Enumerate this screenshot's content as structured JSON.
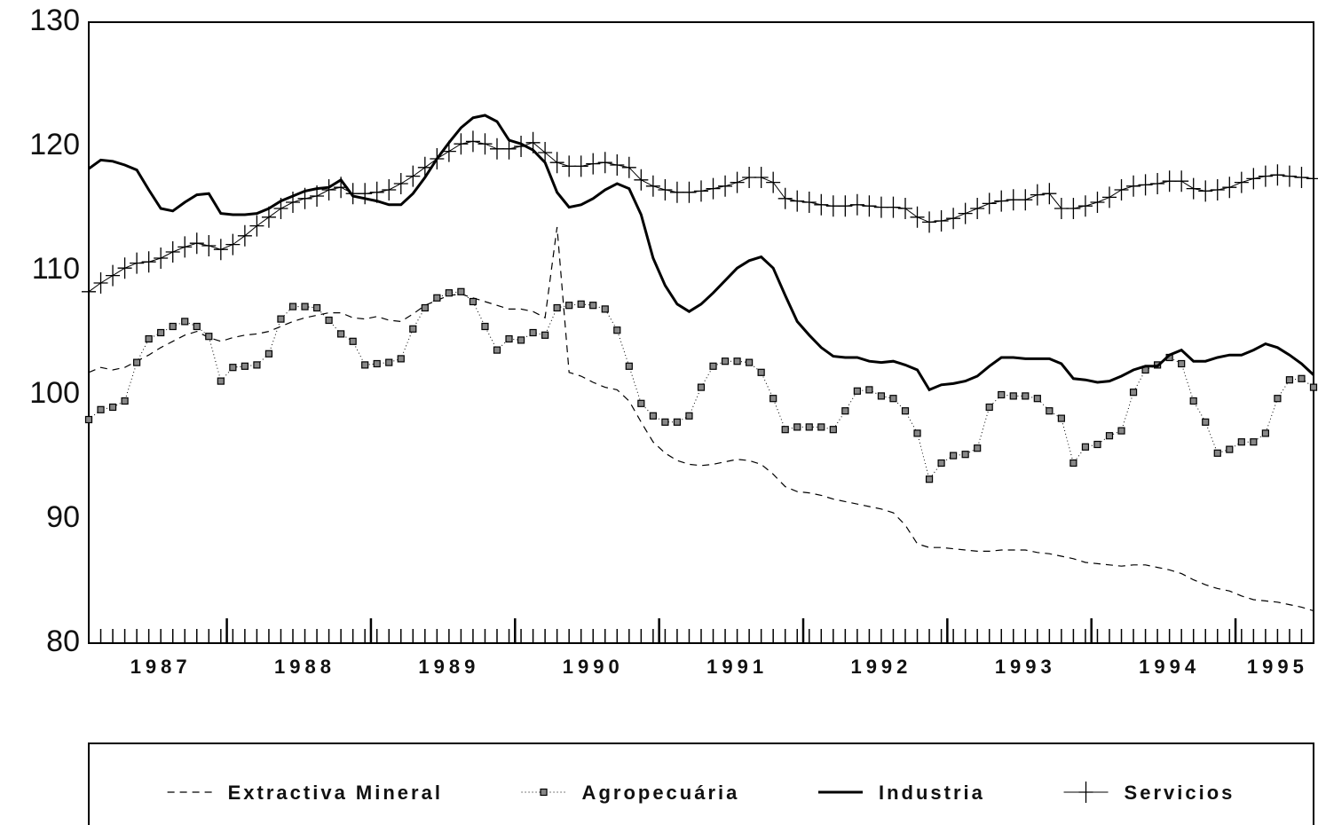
{
  "chart_data": {
    "type": "line",
    "categories": [
      null,
      null,
      null,
      null,
      null,
      null,
      "1987",
      null,
      null,
      null,
      null,
      null,
      null,
      null,
      null,
      null,
      null,
      null,
      "1988",
      null,
      null,
      null,
      null,
      null,
      null,
      null,
      null,
      null,
      null,
      null,
      "1989",
      null,
      null,
      null,
      null,
      null,
      null,
      null,
      null,
      null,
      null,
      null,
      "1990",
      null,
      null,
      null,
      null,
      null,
      null,
      null,
      null,
      null,
      null,
      null,
      "1991",
      null,
      null,
      null,
      null,
      null,
      null,
      null,
      null,
      null,
      null,
      null,
      "1992",
      null,
      null,
      null,
      null,
      null,
      null,
      null,
      null,
      null,
      null,
      null,
      "1993",
      null,
      null,
      null,
      null,
      null,
      null,
      null,
      null,
      null,
      null,
      null,
      "1994",
      null,
      null,
      null,
      null,
      null,
      null,
      null,
      null,
      "1995",
      null,
      null,
      null
    ],
    "ylim": [
      80,
      130
    ],
    "yticks": [
      80,
      90,
      100,
      110,
      120,
      130
    ],
    "grid": false,
    "legend": "bottom",
    "series": [
      {
        "name": "Extractiva Mineral",
        "color": "#000000",
        "line_style": "dashed",
        "marker": "none",
        "values": [
          101.8,
          102.2,
          102.0,
          102.2,
          102.7,
          103.2,
          103.8,
          104.3,
          104.8,
          105.1,
          104.6,
          104.3,
          104.6,
          104.8,
          104.9,
          105.1,
          105.5,
          105.9,
          106.2,
          106.4,
          106.6,
          106.6,
          106.2,
          106.1,
          106.3,
          106.0,
          105.9,
          106.5,
          107.2,
          107.6,
          108.0,
          108.1,
          107.8,
          107.5,
          107.2,
          106.9,
          106.9,
          106.7,
          106.2,
          113.5,
          101.8,
          101.5,
          101.0,
          100.6,
          100.4,
          99.5,
          97.8,
          96.2,
          95.3,
          94.7,
          94.4,
          94.3,
          94.4,
          94.6,
          94.8,
          94.7,
          94.4,
          93.6,
          92.6,
          92.2,
          92.1,
          91.9,
          91.6,
          91.4,
          91.2,
          91.0,
          90.8,
          90.5,
          89.5,
          88.0,
          87.7,
          87.7,
          87.6,
          87.5,
          87.4,
          87.4,
          87.5,
          87.5,
          87.5,
          87.3,
          87.2,
          87.0,
          86.8,
          86.5,
          86.4,
          86.3,
          86.2,
          86.3,
          86.3,
          86.1,
          85.9,
          85.6,
          85.1,
          84.7,
          84.4,
          84.2,
          83.8,
          83.5,
          83.4,
          83.3,
          83.1,
          82.9,
          82.6
        ]
      },
      {
        "name": "Agropecuária",
        "color": "#000000",
        "line_style": "dotted",
        "marker": "square",
        "values": [
          98.0,
          98.8,
          99.0,
          99.5,
          102.6,
          104.5,
          105.0,
          105.5,
          105.9,
          105.5,
          104.7,
          101.1,
          102.2,
          102.3,
          102.4,
          103.3,
          106.1,
          107.1,
          107.1,
          107.0,
          106.0,
          104.9,
          104.3,
          102.4,
          102.5,
          102.6,
          102.9,
          105.3,
          107.0,
          107.8,
          108.2,
          108.3,
          107.5,
          105.5,
          103.6,
          104.5,
          104.4,
          105.0,
          104.8,
          107.0,
          107.2,
          107.3,
          107.2,
          106.9,
          105.2,
          102.3,
          99.3,
          98.3,
          97.8,
          97.8,
          98.3,
          100.6,
          102.3,
          102.7,
          102.7,
          102.6,
          101.8,
          99.7,
          97.2,
          97.4,
          97.4,
          97.4,
          97.2,
          98.7,
          100.3,
          100.4,
          99.9,
          99.7,
          98.7,
          96.9,
          93.2,
          94.5,
          95.1,
          95.2,
          95.7,
          99.0,
          100.0,
          99.9,
          99.9,
          99.7,
          98.7,
          98.1,
          94.5,
          95.8,
          96.0,
          96.7,
          97.1,
          100.2,
          102.0,
          102.4,
          103.0,
          102.5,
          99.5,
          97.8,
          95.3,
          95.6,
          96.2,
          96.2,
          96.9,
          99.7,
          101.2,
          101.3,
          100.6
        ]
      },
      {
        "name": "Industria",
        "color": "#000000",
        "line_style": "solid",
        "marker": "none",
        "values": [
          118.2,
          118.9,
          118.8,
          118.5,
          118.1,
          116.5,
          115.0,
          114.8,
          115.5,
          116.1,
          116.2,
          114.6,
          114.5,
          114.5,
          114.6,
          115.0,
          115.6,
          116.0,
          116.4,
          116.6,
          116.7,
          117.3,
          116.0,
          115.8,
          115.6,
          115.3,
          115.3,
          116.2,
          117.5,
          119.0,
          120.3,
          121.5,
          122.3,
          122.5,
          122.0,
          120.5,
          120.2,
          119.7,
          118.7,
          116.3,
          115.1,
          115.3,
          115.8,
          116.5,
          117.0,
          116.6,
          114.5,
          111.0,
          108.8,
          107.3,
          106.7,
          107.3,
          108.2,
          109.2,
          110.2,
          110.8,
          111.1,
          110.2,
          108.0,
          105.9,
          104.8,
          103.8,
          103.1,
          103.0,
          103.0,
          102.7,
          102.6,
          102.7,
          102.4,
          102.0,
          100.4,
          100.8,
          100.9,
          101.1,
          101.5,
          102.3,
          103.0,
          103.0,
          102.9,
          102.9,
          102.9,
          102.5,
          101.3,
          101.2,
          101.0,
          101.1,
          101.5,
          102.0,
          102.3,
          102.3,
          103.2,
          103.6,
          102.7,
          102.7,
          103.0,
          103.2,
          103.2,
          103.6,
          104.1,
          103.8,
          103.2,
          102.5,
          101.6
        ]
      },
      {
        "name": "Servicios",
        "color": "#000000",
        "line_style": "thin",
        "marker": "plus",
        "values": [
          108.3,
          109.0,
          109.6,
          110.2,
          110.6,
          110.7,
          111.0,
          111.5,
          111.9,
          112.2,
          112.0,
          111.7,
          112.1,
          112.8,
          113.6,
          114.3,
          115.0,
          115.5,
          115.8,
          116.0,
          116.5,
          116.7,
          116.2,
          116.2,
          116.3,
          116.5,
          117.0,
          117.6,
          118.3,
          119.0,
          119.6,
          120.2,
          120.4,
          120.2,
          119.8,
          119.8,
          120.0,
          120.3,
          119.5,
          118.7,
          118.4,
          118.4,
          118.6,
          118.7,
          118.5,
          118.3,
          117.3,
          116.8,
          116.5,
          116.3,
          116.3,
          116.4,
          116.6,
          116.8,
          117.1,
          117.5,
          117.5,
          117.1,
          115.8,
          115.6,
          115.5,
          115.3,
          115.2,
          115.2,
          115.3,
          115.2,
          115.1,
          115.1,
          115.0,
          114.3,
          113.9,
          114.0,
          114.2,
          114.6,
          115.0,
          115.4,
          115.6,
          115.7,
          115.7,
          116.1,
          116.2,
          115.0,
          115.0,
          115.2,
          115.5,
          115.9,
          116.5,
          116.8,
          116.9,
          117.0,
          117.2,
          117.2,
          116.6,
          116.4,
          116.5,
          116.7,
          117.1,
          117.4,
          117.6,
          117.7,
          117.6,
          117.5,
          117.4
        ]
      }
    ]
  }
}
